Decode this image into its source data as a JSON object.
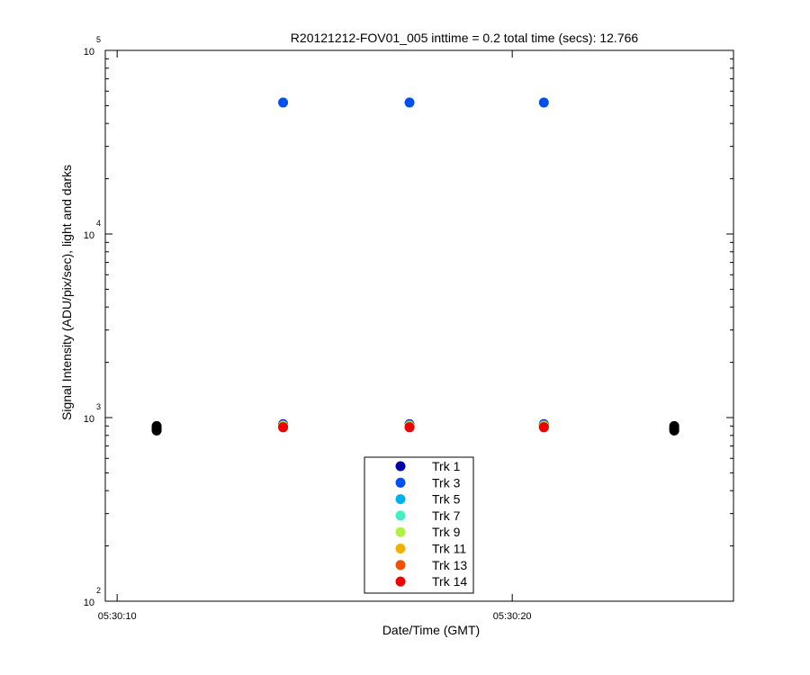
{
  "chart_data": {
    "type": "scatter",
    "title": "R20121212-FOV01_005 inttime = 0.2 total time (secs): 12.766",
    "xlabel": "Date/Time (GMT)",
    "ylabel": "Signal Intensity (ADU/pix/sec), light and darks",
    "y_scale": "log",
    "ylim": [
      100,
      100000
    ],
    "xlim": [
      "05:30:09.7",
      "05:30:25.6"
    ],
    "grid": false,
    "legend_position": "bottom-center",
    "x_ticks": [
      "05:30:10",
      "05:30:20"
    ],
    "y_ticks": [
      {
        "base": "10",
        "exp": "2"
      },
      {
        "base": "10",
        "exp": "3"
      },
      {
        "base": "10",
        "exp": "4"
      },
      {
        "base": "10",
        "exp": "5"
      }
    ],
    "series": [
      {
        "name": "Trk 1",
        "color": "#0000aa",
        "x": [
          "05:30:14.2",
          "05:30:17.4",
          "05:30:20.8"
        ],
        "y": [
          920,
          920,
          920
        ]
      },
      {
        "name": "Trk 3",
        "color": "#0050f0",
        "x": [
          "05:30:14.2",
          "05:30:17.4",
          "05:30:20.8"
        ],
        "y": [
          52000,
          52000,
          52000
        ]
      },
      {
        "name": "Trk 5",
        "color": "#00b0f0",
        "x": [
          "05:30:14.2",
          "05:30:17.4",
          "05:30:20.8"
        ],
        "y": [
          910,
          910,
          910
        ]
      },
      {
        "name": "Trk 7",
        "color": "#40f0c0",
        "x": [
          "05:30:14.2",
          "05:30:17.4",
          "05:30:20.8"
        ],
        "y": [
          905,
          905,
          905
        ]
      },
      {
        "name": "Trk 9",
        "color": "#b0f040",
        "x": [
          "05:30:14.2",
          "05:30:17.4",
          "05:30:20.8"
        ],
        "y": [
          900,
          900,
          900
        ]
      },
      {
        "name": "Trk 11",
        "color": "#f0b000",
        "x": [
          "05:30:14.2",
          "05:30:17.4",
          "05:30:20.8"
        ],
        "y": [
          895,
          895,
          895
        ]
      },
      {
        "name": "Trk 13",
        "color": "#f05000",
        "x": [
          "05:30:14.2",
          "05:30:17.4",
          "05:30:20.8"
        ],
        "y": [
          890,
          890,
          890
        ]
      },
      {
        "name": "Trk 14",
        "color": "#f00000",
        "x": [
          "05:30:14.2",
          "05:30:17.4",
          "05:30:20.8"
        ],
        "y": [
          885,
          885,
          885
        ]
      }
    ],
    "dark_points": {
      "color": "#000000",
      "x": [
        "05:30:11.0",
        "05:30:11.0",
        "05:30:11.0",
        "05:30:11.0",
        "05:30:24.1",
        "05:30:24.1",
        "05:30:24.1",
        "05:30:24.1"
      ],
      "y": [
        900,
        880,
        865,
        850,
        900,
        880,
        865,
        850
      ]
    }
  }
}
